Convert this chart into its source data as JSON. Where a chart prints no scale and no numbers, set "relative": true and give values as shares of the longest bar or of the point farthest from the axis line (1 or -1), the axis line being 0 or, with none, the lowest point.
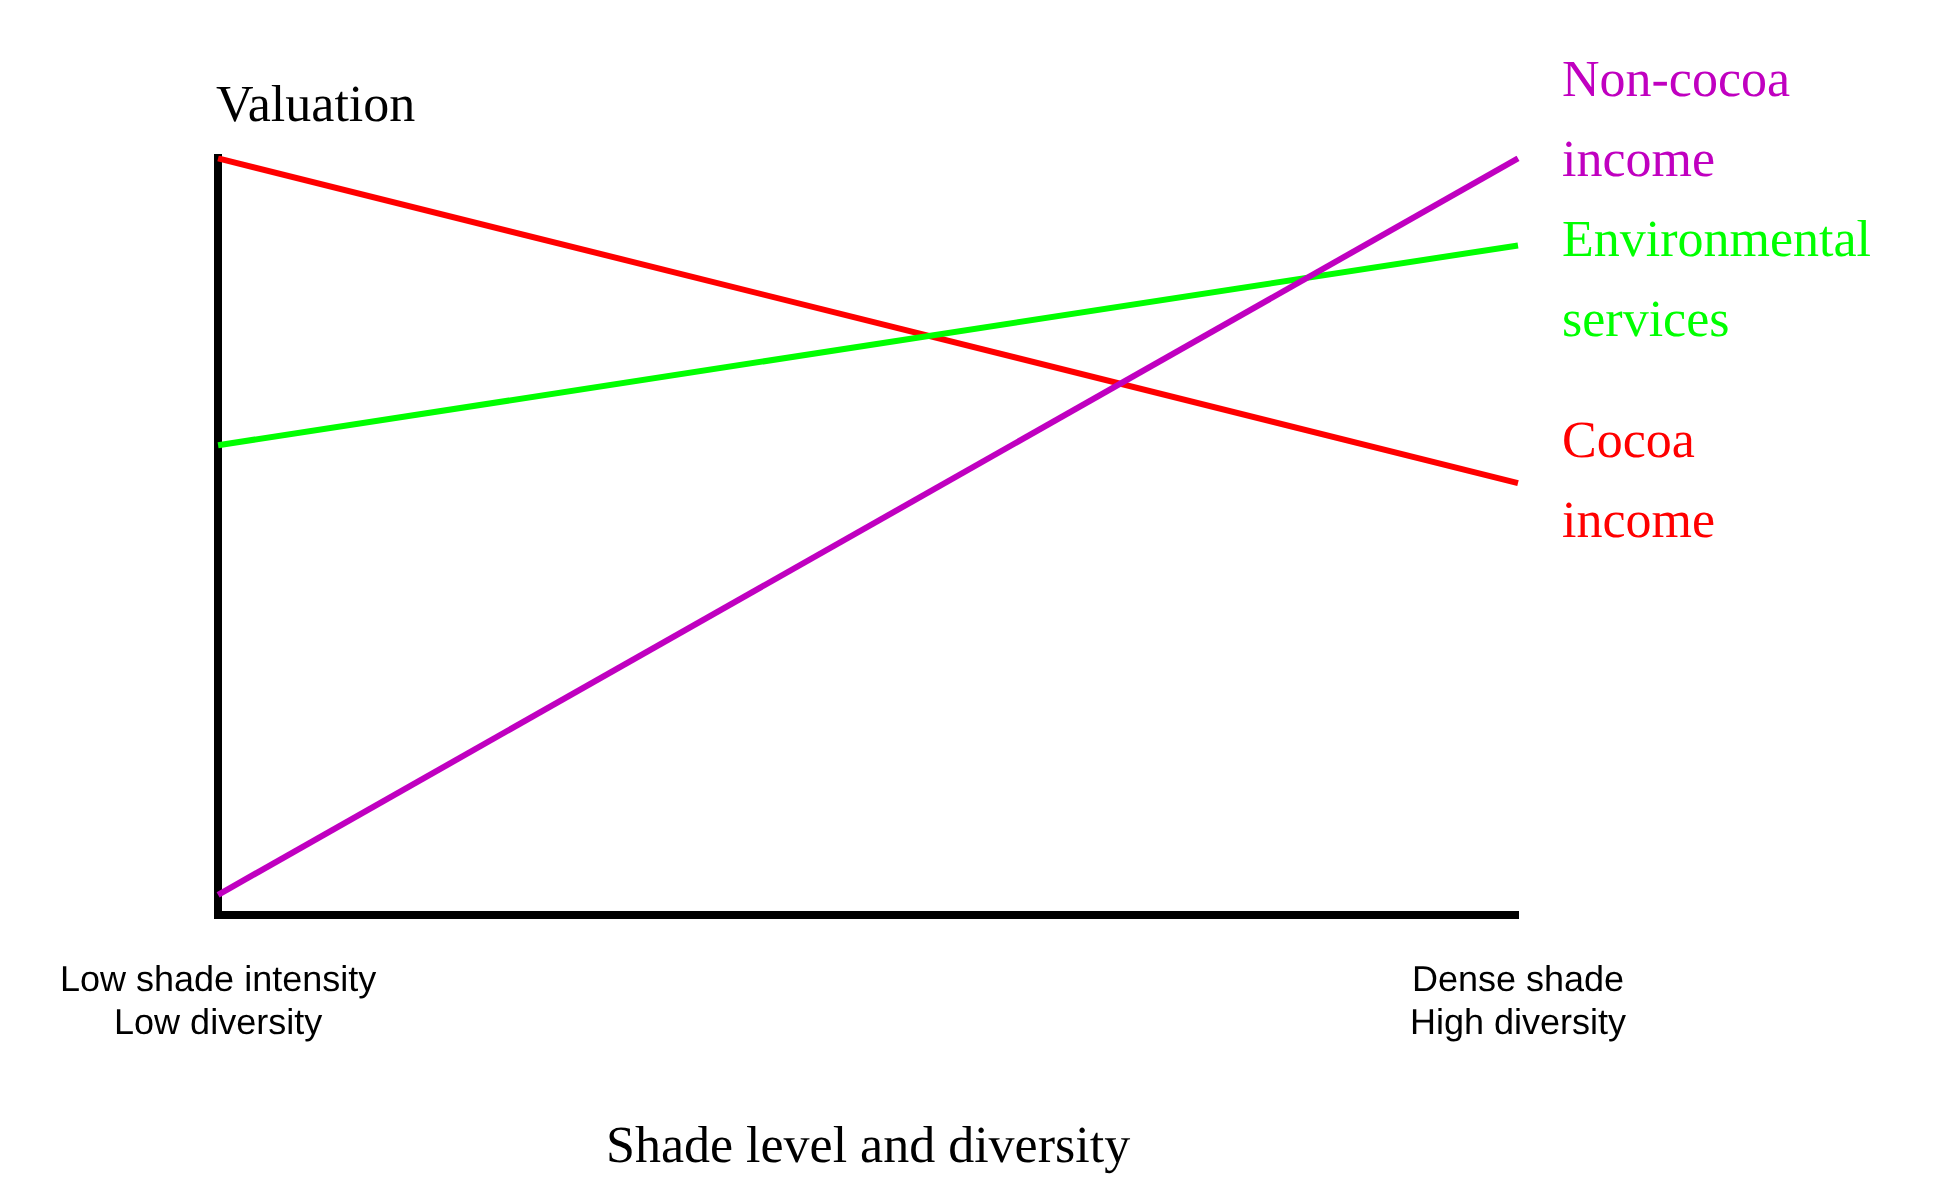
{
  "chart_data": {
    "type": "line",
    "relative": true,
    "ylabel": "Valuation",
    "xlabel": "Shade level and diversity",
    "categories": [
      "Low shade intensity\nLow diversity",
      "Dense shade\nHigh diversity"
    ],
    "series": [
      {
        "name": "Non-cocoa income",
        "color": "#c000c0",
        "values": [
          0.027,
          1
        ]
      },
      {
        "name": "Environmental services",
        "color": "#00ff00",
        "values": [
          0.621,
          0.885
        ]
      },
      {
        "name": "Cocoa income",
        "color": "#ff0000",
        "values": [
          1,
          0.571
        ]
      }
    ],
    "legend": false,
    "marker": "none"
  }
}
